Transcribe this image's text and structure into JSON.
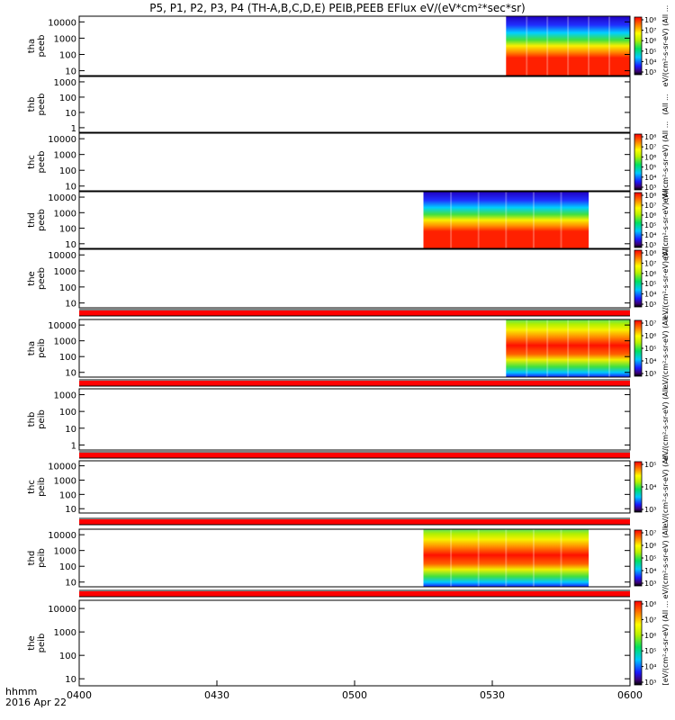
{
  "chart_data": {
    "type": "heatmap",
    "title": "P5, P1, P2, P3, P4 (TH-A,B,C,D,E) PEIB,PEEB EFlux eV/(eV*cm²*sec*sr)",
    "x_label_line1": "hhmm",
    "x_label_line2": "2016 Apr 22",
    "x_ticks": [
      "0400",
      "0430",
      "0500",
      "0530",
      "0600"
    ],
    "x_range": [
      "04:00",
      "06:00"
    ],
    "colorscale": "rainbow (blue-low, red-high)",
    "panels": [
      {
        "id": "tha-peeb",
        "label": [
          "tha",
          "peeb"
        ],
        "y_ticks": [
          "10",
          "100",
          "1000",
          "10000"
        ],
        "y_scale": "log",
        "data_interval": [
          "05:33",
          "06:00"
        ],
        "colorbar_ticks": [
          "10³",
          "10⁴",
          "10⁵",
          "10⁶",
          "10⁷",
          "10⁸"
        ],
        "colorbar_label": "eV/(cm²-s-sr-eV) (All ..."
      },
      {
        "id": "thb-peeb",
        "label": [
          "thb",
          "peeb"
        ],
        "y_ticks": [
          "1",
          "10",
          "100",
          "1000"
        ],
        "y_scale": "log",
        "data_interval": null,
        "colorbar_ticks": [],
        "colorbar_label": "(All ..."
      },
      {
        "id": "thc-peeb",
        "label": [
          "thc",
          "peeb"
        ],
        "y_ticks": [
          "10",
          "100",
          "1000",
          "10000"
        ],
        "y_scale": "log",
        "data_interval": null,
        "colorbar_ticks": [
          "10³",
          "10⁴",
          "10⁵",
          "10⁶",
          "10⁷",
          "10⁸"
        ],
        "colorbar_label": "eV/(cm²-s-sr-eV) (All ..."
      },
      {
        "id": "thd-peeb",
        "label": [
          "thd",
          "peeb"
        ],
        "y_ticks": [
          "10",
          "100",
          "1000",
          "10000"
        ],
        "y_scale": "log",
        "data_interval": [
          "05:15",
          "05:51"
        ],
        "colorbar_ticks": [
          "10³",
          "10⁴",
          "10⁵",
          "10⁶",
          "10⁷",
          "10⁸"
        ],
        "colorbar_label": "eV/(cm²-s-sr-eV) (All ..."
      },
      {
        "id": "the-peeb",
        "label": [
          "the",
          "peeb"
        ],
        "y_ticks": [
          "10",
          "100",
          "1000",
          "10000"
        ],
        "y_scale": "log",
        "data_interval": null,
        "colorbar_ticks": [
          "10³",
          "10⁴",
          "10⁵",
          "10⁶",
          "10⁷",
          "10⁸"
        ],
        "colorbar_label": "eV/(cm²-s-sr-eV) (All ..."
      },
      {
        "id": "tha-peib",
        "label": [
          "tha",
          "peib"
        ],
        "y_ticks": [
          "10",
          "100",
          "1000",
          "10000"
        ],
        "y_scale": "log",
        "data_interval": [
          "05:33",
          "06:00"
        ],
        "colorbar_ticks": [
          "10³",
          "10⁴",
          "10⁵",
          "10⁶",
          "10⁷"
        ],
        "colorbar_label": "eV/(cm²-s-sr-eV) (All ..."
      },
      {
        "id": "thb-peib",
        "label": [
          "thb",
          "peib"
        ],
        "y_ticks": [
          "1",
          "10",
          "100",
          "1000"
        ],
        "y_scale": "log",
        "data_interval": null,
        "colorbar_ticks": [],
        "colorbar_label": "eV/(cm²-s-sr-eV) (All ..."
      },
      {
        "id": "thc-peib",
        "label": [
          "thc",
          "peib"
        ],
        "y_ticks": [
          "10",
          "100",
          "1000",
          "10000"
        ],
        "y_scale": "log",
        "data_interval": null,
        "colorbar_ticks": [
          "10³",
          "10⁴",
          "10⁵"
        ],
        "colorbar_label": "eV/(cm²-s-sr-eV) (All ..."
      },
      {
        "id": "thd-peib",
        "label": [
          "thd",
          "peib"
        ],
        "y_ticks": [
          "10",
          "100",
          "1000",
          "10000"
        ],
        "y_scale": "log",
        "data_interval": [
          "05:15",
          "05:51"
        ],
        "colorbar_ticks": [
          "10³",
          "10⁴",
          "10⁵",
          "10⁶",
          "10⁷"
        ],
        "colorbar_label": "eV/(cm²-s-sr-eV) (All ..."
      },
      {
        "id": "the-peib",
        "label": [
          "the",
          "peib"
        ],
        "y_ticks": [
          "10",
          "100",
          "1000",
          "10000"
        ],
        "y_scale": "log",
        "data_interval": null,
        "colorbar_ticks": [
          "10³",
          "10⁴",
          "10⁵",
          "10⁶",
          "10⁷",
          "10⁸"
        ],
        "colorbar_label": "[eV/(cm²-s-sr-eV) (All ..."
      }
    ]
  },
  "colors": {
    "separator": "#ff0000",
    "axes": "#000000",
    "background": "#ffffff"
  }
}
